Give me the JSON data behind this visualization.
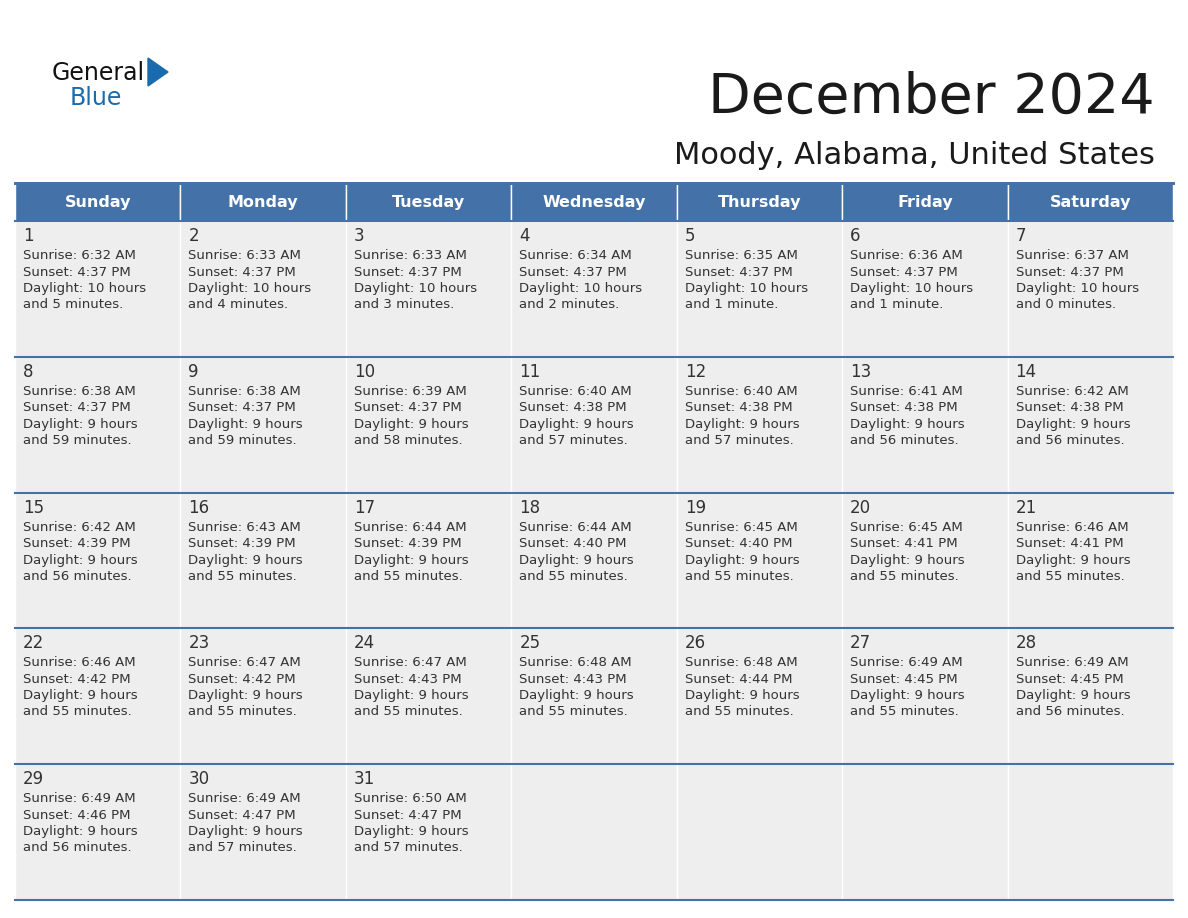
{
  "title": "December 2024",
  "subtitle": "Moody, Alabama, United States",
  "days_of_week": [
    "Sunday",
    "Monday",
    "Tuesday",
    "Wednesday",
    "Thursday",
    "Friday",
    "Saturday"
  ],
  "header_bg": "#4472A8",
  "header_text": "#FFFFFF",
  "cell_bg": "#EEEEEE",
  "divider_color": "#4472A8",
  "text_color": "#333333",
  "day_num_color": "#333333",
  "general_blue_color": "#1A6BAD",
  "general_black_color": "#1a1a1a",
  "calendar": [
    [
      {
        "day": 1,
        "sunrise": "6:32 AM",
        "sunset": "4:37 PM",
        "daylight": "10 hours\nand 5 minutes."
      },
      {
        "day": 2,
        "sunrise": "6:33 AM",
        "sunset": "4:37 PM",
        "daylight": "10 hours\nand 4 minutes."
      },
      {
        "day": 3,
        "sunrise": "6:33 AM",
        "sunset": "4:37 PM",
        "daylight": "10 hours\nand 3 minutes."
      },
      {
        "day": 4,
        "sunrise": "6:34 AM",
        "sunset": "4:37 PM",
        "daylight": "10 hours\nand 2 minutes."
      },
      {
        "day": 5,
        "sunrise": "6:35 AM",
        "sunset": "4:37 PM",
        "daylight": "10 hours\nand 1 minute."
      },
      {
        "day": 6,
        "sunrise": "6:36 AM",
        "sunset": "4:37 PM",
        "daylight": "10 hours\nand 1 minute."
      },
      {
        "day": 7,
        "sunrise": "6:37 AM",
        "sunset": "4:37 PM",
        "daylight": "10 hours\nand 0 minutes."
      }
    ],
    [
      {
        "day": 8,
        "sunrise": "6:38 AM",
        "sunset": "4:37 PM",
        "daylight": "9 hours\nand 59 minutes."
      },
      {
        "day": 9,
        "sunrise": "6:38 AM",
        "sunset": "4:37 PM",
        "daylight": "9 hours\nand 59 minutes."
      },
      {
        "day": 10,
        "sunrise": "6:39 AM",
        "sunset": "4:37 PM",
        "daylight": "9 hours\nand 58 minutes."
      },
      {
        "day": 11,
        "sunrise": "6:40 AM",
        "sunset": "4:38 PM",
        "daylight": "9 hours\nand 57 minutes."
      },
      {
        "day": 12,
        "sunrise": "6:40 AM",
        "sunset": "4:38 PM",
        "daylight": "9 hours\nand 57 minutes."
      },
      {
        "day": 13,
        "sunrise": "6:41 AM",
        "sunset": "4:38 PM",
        "daylight": "9 hours\nand 56 minutes."
      },
      {
        "day": 14,
        "sunrise": "6:42 AM",
        "sunset": "4:38 PM",
        "daylight": "9 hours\nand 56 minutes."
      }
    ],
    [
      {
        "day": 15,
        "sunrise": "6:42 AM",
        "sunset": "4:39 PM",
        "daylight": "9 hours\nand 56 minutes."
      },
      {
        "day": 16,
        "sunrise": "6:43 AM",
        "sunset": "4:39 PM",
        "daylight": "9 hours\nand 55 minutes."
      },
      {
        "day": 17,
        "sunrise": "6:44 AM",
        "sunset": "4:39 PM",
        "daylight": "9 hours\nand 55 minutes."
      },
      {
        "day": 18,
        "sunrise": "6:44 AM",
        "sunset": "4:40 PM",
        "daylight": "9 hours\nand 55 minutes."
      },
      {
        "day": 19,
        "sunrise": "6:45 AM",
        "sunset": "4:40 PM",
        "daylight": "9 hours\nand 55 minutes."
      },
      {
        "day": 20,
        "sunrise": "6:45 AM",
        "sunset": "4:41 PM",
        "daylight": "9 hours\nand 55 minutes."
      },
      {
        "day": 21,
        "sunrise": "6:46 AM",
        "sunset": "4:41 PM",
        "daylight": "9 hours\nand 55 minutes."
      }
    ],
    [
      {
        "day": 22,
        "sunrise": "6:46 AM",
        "sunset": "4:42 PM",
        "daylight": "9 hours\nand 55 minutes."
      },
      {
        "day": 23,
        "sunrise": "6:47 AM",
        "sunset": "4:42 PM",
        "daylight": "9 hours\nand 55 minutes."
      },
      {
        "day": 24,
        "sunrise": "6:47 AM",
        "sunset": "4:43 PM",
        "daylight": "9 hours\nand 55 minutes."
      },
      {
        "day": 25,
        "sunrise": "6:48 AM",
        "sunset": "4:43 PM",
        "daylight": "9 hours\nand 55 minutes."
      },
      {
        "day": 26,
        "sunrise": "6:48 AM",
        "sunset": "4:44 PM",
        "daylight": "9 hours\nand 55 minutes."
      },
      {
        "day": 27,
        "sunrise": "6:49 AM",
        "sunset": "4:45 PM",
        "daylight": "9 hours\nand 55 minutes."
      },
      {
        "day": 28,
        "sunrise": "6:49 AM",
        "sunset": "4:45 PM",
        "daylight": "9 hours\nand 56 minutes."
      }
    ],
    [
      {
        "day": 29,
        "sunrise": "6:49 AM",
        "sunset": "4:46 PM",
        "daylight": "9 hours\nand 56 minutes."
      },
      {
        "day": 30,
        "sunrise": "6:49 AM",
        "sunset": "4:47 PM",
        "daylight": "9 hours\nand 57 minutes."
      },
      {
        "day": 31,
        "sunrise": "6:50 AM",
        "sunset": "4:47 PM",
        "daylight": "9 hours\nand 57 minutes."
      },
      null,
      null,
      null,
      null
    ]
  ]
}
